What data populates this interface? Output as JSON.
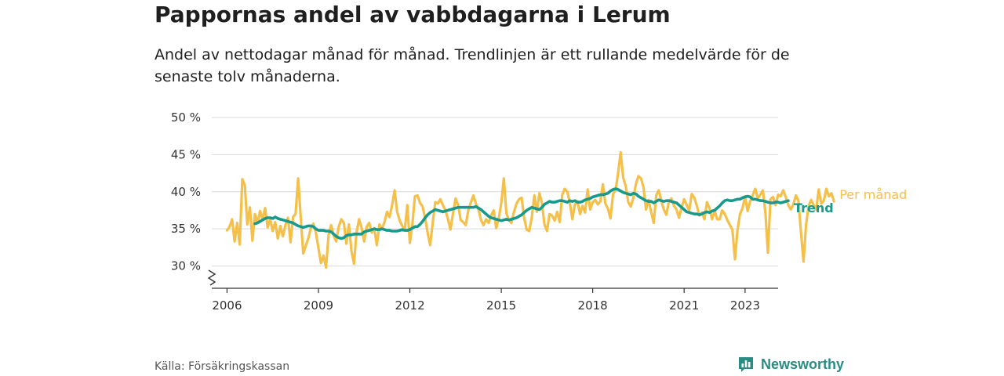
{
  "header": {
    "title": "Pappornas andel av vabbdagarna i Lerum",
    "subtitle": "Andel av nettodagar månad för månad. Trendlinjen är ett rullande medelvärde för de senaste tolv månaderna."
  },
  "footer": {
    "source": "Källa: Försäkringskassan",
    "brand": "Newsworthy",
    "brand_icon": "bar-chart-icon"
  },
  "colors": {
    "monthly": "#f5c04a",
    "trend": "#17998b",
    "grid": "#d9d9d9",
    "axis": "#333333"
  },
  "chart_data": {
    "type": "line",
    "xlabel": "",
    "ylabel": "",
    "x_ticks": [
      "2006",
      "2009",
      "2012",
      "2015",
      "2018",
      "2021",
      "2023"
    ],
    "y_ticks": [
      "30 %",
      "35 %",
      "40 %",
      "45 %",
      "50 %"
    ],
    "ylim": [
      27,
      50
    ],
    "xlim": [
      "2005-07",
      "2024-02"
    ],
    "grid": true,
    "y_axis_break": true,
    "series": [
      {
        "name": "Per månad",
        "start": "2006-01",
        "frequency": "monthly",
        "values": [
          34.8,
          35.3,
          36.3,
          33.3,
          35.8,
          32.9,
          41.7,
          40.9,
          35.6,
          37.9,
          33.4,
          37.0,
          35.8,
          37.4,
          36.3,
          37.8,
          35.2,
          36.3,
          34.7,
          35.9,
          33.7,
          35.4,
          34.0,
          35.5,
          36.5,
          33.2,
          36.6,
          37.0,
          41.8,
          36.7,
          31.7,
          32.7,
          33.7,
          35.1,
          35.7,
          34.5,
          32.4,
          30.4,
          31.4,
          29.8,
          34.2,
          35.5,
          34.1,
          33.3,
          35.3,
          36.3,
          35.8,
          33.0,
          35.6,
          32.0,
          30.3,
          34.5,
          36.3,
          35.1,
          33.3,
          35.3,
          35.8,
          34.5,
          35.1,
          32.8,
          35.6,
          35.0,
          35.9,
          37.3,
          36.6,
          38.2,
          40.2,
          37.3,
          36.1,
          35.4,
          34.9,
          38.2,
          33.1,
          35.7,
          39.4,
          39.5,
          38.5,
          38.0,
          36.5,
          34.5,
          32.8,
          35.8,
          38.6,
          38.4,
          39.0,
          38.2,
          37.5,
          36.3,
          34.9,
          37.1,
          39.1,
          38.2,
          36.2,
          35.9,
          35.5,
          37.5,
          38.5,
          39.5,
          38.4,
          37.6,
          36.2,
          35.5,
          36.3,
          35.8,
          36.8,
          37.5,
          35.1,
          36.4,
          38.5,
          41.8,
          37.1,
          36.2,
          35.8,
          37.3,
          38.4,
          39.0,
          39.2,
          36.5,
          34.9,
          34.7,
          36.5,
          39.5,
          37.3,
          39.8,
          38.5,
          35.6,
          34.7,
          37.0,
          36.8,
          36.1,
          37.3,
          35.9,
          39.6,
          40.4,
          40.0,
          38.5,
          36.3,
          38.3,
          38.7,
          37.0,
          38.1,
          37.2,
          40.3,
          37.6,
          38.6,
          38.9,
          38.3,
          38.7,
          41.0,
          38.4,
          37.7,
          36.4,
          39.7,
          40.2,
          42.5,
          45.3,
          41.9,
          40.8,
          38.6,
          38.0,
          39.2,
          41.0,
          42.1,
          41.8,
          40.6,
          37.6,
          38.9,
          37.3,
          35.8,
          39.5,
          40.2,
          38.8,
          37.6,
          36.9,
          38.7,
          39.1,
          38.1,
          37.6,
          36.5,
          37.9,
          39.0,
          38.2,
          37.5,
          39.7,
          39.2,
          38.1,
          36.8,
          37.2,
          36.3,
          38.6,
          37.8,
          36.3,
          37.4,
          36.3,
          36.3,
          37.5,
          37.0,
          36.2,
          35.5,
          34.9,
          30.9,
          34.8,
          37.0,
          37.8,
          39.4,
          37.4,
          38.7,
          39.5,
          40.4,
          39.1,
          39.6,
          40.2,
          37.2,
          31.8,
          39.0,
          39.3,
          38.2,
          39.6,
          39.4,
          40.2,
          39.3,
          38.2,
          37.6,
          38.3,
          39.5,
          38.8,
          34.6,
          30.6,
          35.5,
          38.1,
          38.9,
          38.2,
          37.6,
          40.3,
          38.4,
          38.8,
          40.4,
          39.4,
          39.8,
          38.7
        ]
      },
      {
        "name": "Trend",
        "start": "2006-12",
        "frequency": "monthly",
        "values": [
          35.7,
          35.8,
          36.0,
          36.2,
          36.4,
          36.5,
          36.5,
          36.4,
          36.6,
          36.4,
          36.3,
          36.2,
          36.1,
          36.0,
          35.9,
          35.8,
          35.6,
          35.4,
          35.3,
          35.2,
          35.3,
          35.4,
          35.4,
          35.3,
          35.0,
          34.8,
          34.8,
          34.8,
          34.7,
          34.7,
          34.6,
          34.3,
          34.0,
          33.8,
          33.7,
          33.8,
          34.1,
          34.2,
          34.2,
          34.3,
          34.3,
          34.3,
          34.3,
          34.6,
          34.7,
          34.8,
          34.9,
          35.0,
          34.9,
          34.9,
          35.0,
          34.9,
          34.8,
          34.8,
          34.7,
          34.7,
          34.7,
          34.8,
          34.9,
          34.8,
          34.8,
          34.9,
          35.1,
          35.3,
          35.3,
          35.6,
          36.0,
          36.5,
          36.9,
          37.2,
          37.4,
          37.6,
          37.5,
          37.4,
          37.3,
          37.4,
          37.5,
          37.6,
          37.7,
          37.8,
          37.9,
          37.9,
          37.9,
          37.9,
          37.9,
          37.9,
          37.9,
          38.0,
          37.8,
          37.6,
          37.3,
          37.0,
          36.7,
          36.5,
          36.4,
          36.3,
          36.2,
          36.1,
          36.2,
          36.3,
          36.2,
          36.3,
          36.4,
          36.5,
          36.7,
          36.9,
          37.2,
          37.5,
          37.7,
          37.9,
          37.8,
          37.7,
          37.6,
          37.9,
          38.3,
          38.5,
          38.7,
          38.6,
          38.6,
          38.7,
          38.8,
          38.8,
          38.7,
          38.6,
          38.8,
          38.7,
          38.8,
          38.6,
          38.6,
          38.7,
          38.9,
          39.0,
          39.1,
          39.3,
          39.4,
          39.5,
          39.6,
          39.6,
          39.7,
          39.8,
          40.1,
          40.3,
          40.4,
          40.3,
          40.1,
          39.9,
          39.8,
          39.7,
          39.6,
          39.8,
          39.7,
          39.4,
          39.2,
          39.0,
          38.8,
          38.7,
          38.7,
          38.5,
          38.7,
          38.9,
          38.8,
          38.7,
          38.8,
          38.8,
          38.7,
          38.6,
          38.5,
          38.2,
          37.9,
          37.6,
          37.3,
          37.2,
          37.1,
          37.0,
          37.0,
          36.9,
          37.0,
          37.2,
          37.3,
          37.2,
          37.4,
          37.5,
          37.8,
          38.1,
          38.5,
          38.8,
          38.9,
          38.8,
          38.8,
          38.9,
          39.0,
          39.0,
          39.2,
          39.3,
          39.4,
          39.3,
          39.0,
          39.0,
          38.9,
          38.8,
          38.8,
          38.7,
          38.6,
          38.5,
          38.5,
          38.6,
          38.6,
          38.5,
          38.6,
          38.7,
          38.8
        ]
      }
    ]
  }
}
